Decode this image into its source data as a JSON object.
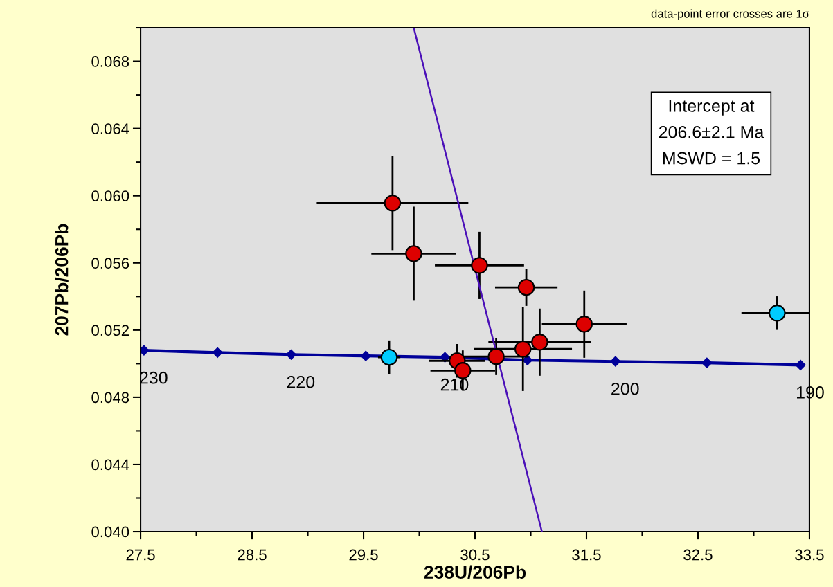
{
  "chart_data": {
    "type": "scatter",
    "xlabel": "238U/206Pb",
    "ylabel": "207Pb/206Pb",
    "xlim": [
      27.5,
      33.5
    ],
    "ylim": [
      0.04,
      0.07
    ],
    "xticks": [
      27.5,
      {
        "value": 28.0,
        "label": null
      },
      28.5,
      {
        "value": 29.0,
        "label": null
      },
      29.5,
      {
        "value": 30.0,
        "label": null
      },
      30.5,
      {
        "value": 31.0,
        "label": null
      },
      31.5,
      {
        "value": 32.0,
        "label": null
      },
      32.5,
      {
        "value": 33.0,
        "label": null
      },
      33.5
    ],
    "yticks": [
      {
        "value": 0.04,
        "label": "0.040"
      },
      {
        "value": 0.042,
        "label": null
      },
      {
        "value": 0.044,
        "label": "0.044"
      },
      {
        "value": 0.046,
        "label": null
      },
      {
        "value": 0.048,
        "label": "0.048"
      },
      {
        "value": 0.05,
        "label": null
      },
      {
        "value": 0.052,
        "label": "0.052"
      },
      {
        "value": 0.054,
        "label": null
      },
      {
        "value": 0.056,
        "label": "0.056"
      },
      {
        "value": 0.058,
        "label": null
      },
      {
        "value": 0.06,
        "label": "0.060"
      },
      {
        "value": 0.062,
        "label": null
      },
      {
        "value": 0.064,
        "label": "0.064"
      },
      {
        "value": 0.066,
        "label": null
      },
      {
        "value": 0.068,
        "label": "0.068"
      },
      {
        "value": 0.07,
        "label": null
      }
    ],
    "grid": false,
    "series": [
      {
        "type": "line",
        "marker": "diamond",
        "color": "#000099",
        "x": [
          27.53,
          28.19,
          28.85,
          29.52,
          30.23,
          30.97,
          31.76,
          32.58,
          33.42
        ],
        "values": [
          0.05079,
          0.05066,
          0.05054,
          0.05046,
          0.05038,
          0.05021,
          0.05013,
          0.05005,
          0.04992
        ]
      },
      {
        "type": "line",
        "marker": "none",
        "color": "#4b10b8",
        "x": [
          29.95,
          31.1
        ],
        "values": [
          0.07,
          0.04
        ]
      },
      {
        "marker": "circle",
        "color": "#dd0000",
        "x": [
          29.76,
          29.95,
          30.54,
          30.96,
          31.48,
          31.08,
          30.93,
          30.69,
          30.34,
          30.39
        ],
        "values": [
          0.05956,
          0.05655,
          0.05585,
          0.05454,
          0.05235,
          0.05128,
          0.05087,
          0.05042,
          0.05017,
          0.04959
        ],
        "xerrors": [
          0.68,
          0.38,
          0.4,
          0.28,
          0.38,
          0.46,
          0.44,
          0.29,
          0.25,
          0.29
        ],
        "errors": [
          0.0028,
          0.0028,
          0.002,
          0.0011,
          0.002,
          0.002,
          0.0025,
          0.0011,
          0.001,
          0.0012
        ]
      },
      {
        "marker": "circle",
        "color": "#00ccff",
        "x": [
          29.73,
          33.21
        ],
        "values": [
          0.05038,
          0.05301
        ],
        "xerrors": [
          0.1,
          0.32
        ],
        "errors": [
          0.001,
          0.001
        ]
      }
    ],
    "annotations": [
      {
        "text": "230",
        "x": 27.53,
        "y": 0.05079
      },
      {
        "text": "220",
        "x": 28.85,
        "y": 0.05054
      },
      {
        "text": "210",
        "x": 30.23,
        "y": 0.05038
      },
      {
        "text": "200",
        "x": 31.76,
        "y": 0.05013
      },
      {
        "text": "190",
        "x": 33.42,
        "y": 0.04992
      },
      "data-point error crosses are 1σ",
      "Intercept at",
      "206.6±2.1 Ma",
      "MSWD = 1.5"
    ]
  }
}
